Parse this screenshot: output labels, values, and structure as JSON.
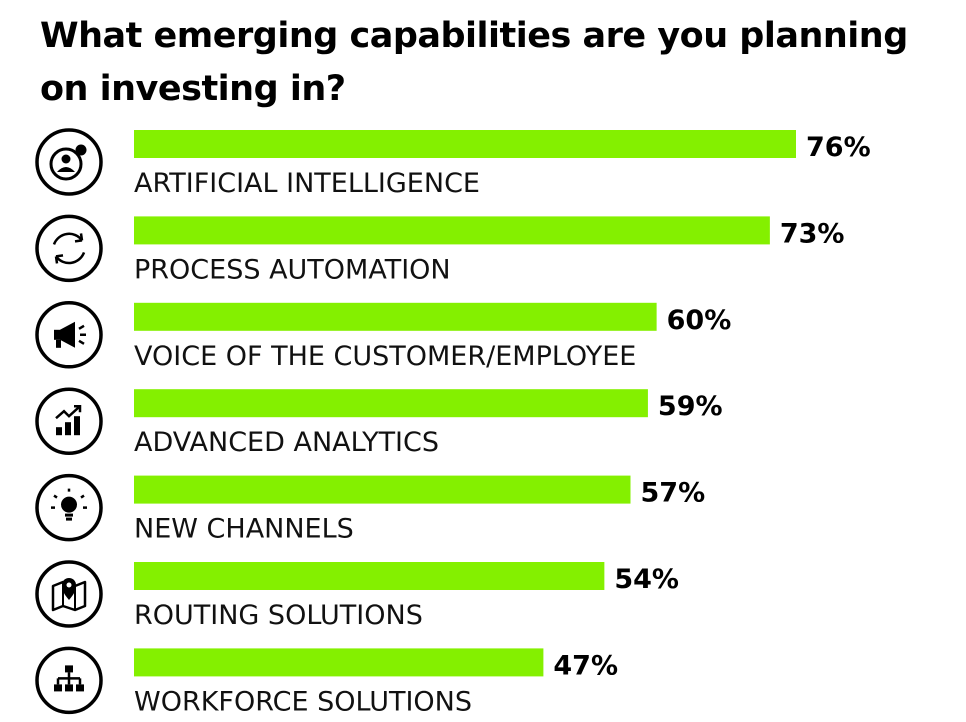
{
  "chart_data": {
    "type": "bar",
    "orientation": "horizontal",
    "title": "What emerging capabilities are you planning on investing in?",
    "categories": [
      "ARTIFICIAL INTELLIGENCE",
      "PROCESS AUTOMATION",
      "VOICE OF THE CUSTOMER/EMPLOYEE",
      "ADVANCED ANALYTICS",
      "NEW CHANNELS",
      "ROUTING SOLUTIONS",
      "WORKFORCE SOLUTIONS"
    ],
    "values": [
      76,
      73,
      60,
      59,
      57,
      54,
      47
    ],
    "value_labels": [
      "76%",
      "73%",
      "60%",
      "59%",
      "57%",
      "54%",
      "47%"
    ],
    "icons": [
      "ai-person-icon",
      "refresh-cycle-icon",
      "megaphone-icon",
      "growth-chart-icon",
      "lightbulb-icon",
      "map-pin-icon",
      "org-chart-icon"
    ],
    "bar_color": "#84f000",
    "xlim": [
      0,
      100
    ],
    "grid": false,
    "legend": "none"
  }
}
